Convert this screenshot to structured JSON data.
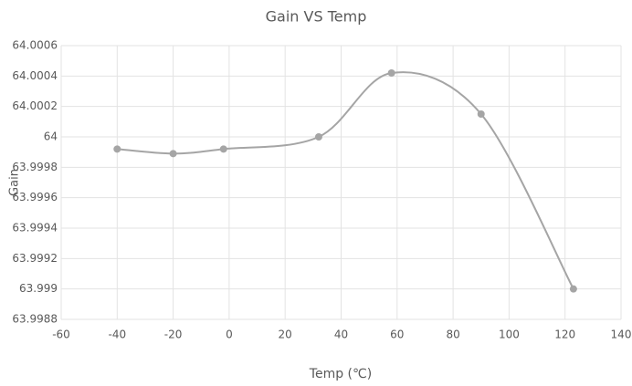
{
  "chart_data": {
    "type": "scatter",
    "title": "Gain VS Temp",
    "x_label": "Temp (℃)",
    "y_label": "Gain",
    "series": [
      {
        "name": "Gain",
        "color": "#a5a5a5",
        "x": [
          -40,
          -20,
          -2,
          32,
          58,
          90,
          123
        ],
        "values": [
          63.99992,
          63.99989,
          63.99992,
          64.0,
          64.00042,
          64.00015,
          63.999
        ]
      }
    ],
    "xlim": [
      -60,
      140
    ],
    "xticks": [
      -60,
      -40,
      -20,
      0,
      20,
      40,
      60,
      80,
      100,
      120,
      140
    ],
    "ylim": [
      63.9988,
      64.0006
    ],
    "yticks": [
      63.9988,
      63.999,
      63.9992,
      63.9994,
      63.9996,
      63.9998,
      64,
      64.0002,
      64.0004,
      64.0006
    ],
    "grid": true,
    "smooth": true
  }
}
